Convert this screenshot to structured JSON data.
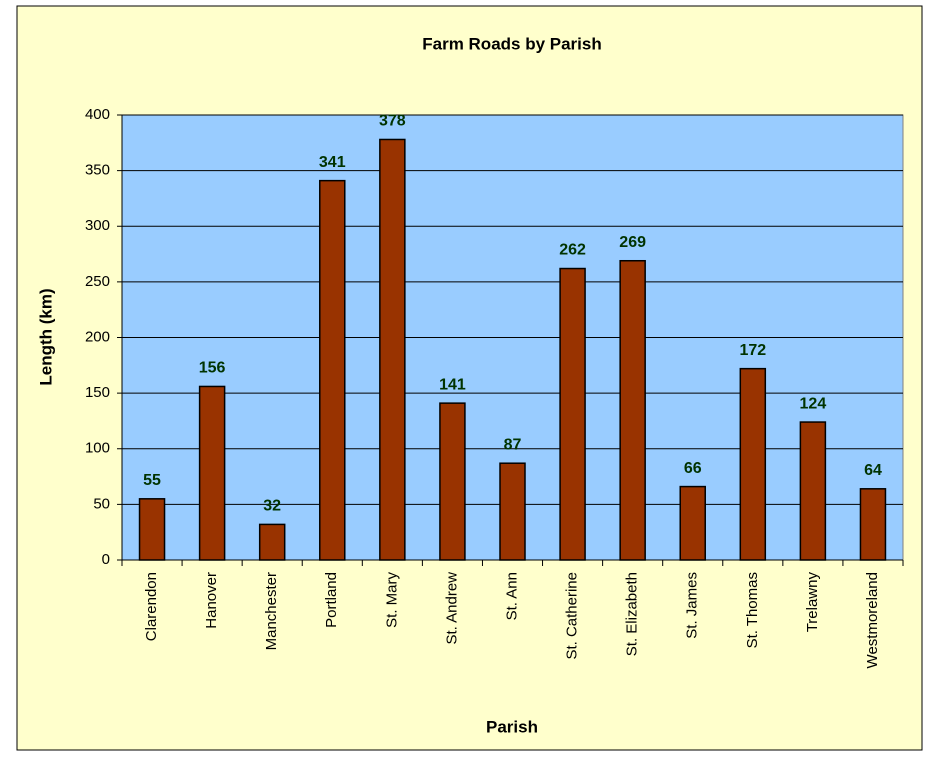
{
  "chart_data": {
    "type": "bar",
    "title": "Farm Roads by Parish",
    "x_label": "Parish",
    "y_label": "Length (km)",
    "categories": [
      "Clarendon",
      "Hanover",
      "Manchester",
      "Portland",
      "St. Mary",
      "St. Andrew",
      "St. Ann",
      "St. Catherine",
      "St. Elizabeth",
      "St. James",
      "St. Thomas",
      "Trelawny",
      "Westmoreland"
    ],
    "values": [
      55,
      156,
      32,
      341,
      378,
      141,
      87,
      262,
      269,
      66,
      172,
      124,
      64
    ],
    "color": "#993300",
    "ylim": [
      0,
      400
    ],
    "yticks": [
      0,
      50,
      100,
      150,
      200,
      250,
      300,
      350,
      400
    ],
    "grid": true
  }
}
